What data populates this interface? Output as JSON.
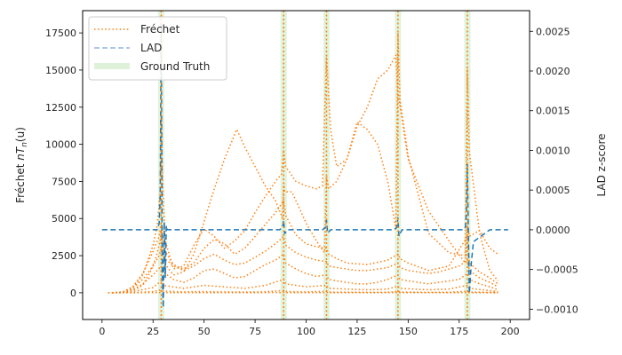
{
  "chart_data": {
    "type": "line",
    "x_range": [
      -9.5,
      209.5
    ],
    "x_ticks": [
      0,
      25,
      50,
      75,
      100,
      125,
      150,
      175,
      200
    ],
    "y_left": {
      "label": "Fréchet nTₙ(u)",
      "label_main": "Fréchet ",
      "label_math": "nT",
      "label_sub": "n",
      "label_tail": "(u)",
      "range": [
        -1800,
        19000
      ],
      "ticks": [
        0,
        2500,
        5000,
        7500,
        10000,
        12500,
        15000,
        17500
      ]
    },
    "y_right": {
      "label": "LAD z-score",
      "range": [
        -0.00113,
        0.00276
      ],
      "ticks": [
        -0.001,
        -0.0005,
        0.0,
        0.0005,
        0.001,
        0.0015,
        0.002,
        0.0025
      ],
      "tick_labels": [
        "−0.0010",
        "−0.0005",
        "0.0000",
        "0.0005",
        "0.0010",
        "0.0015",
        "0.0020",
        "0.0025"
      ]
    },
    "legend": {
      "placement": "upper-left",
      "entries": [
        {
          "label": "Fréchet",
          "style": "dotted",
          "color": "#ff7f0e"
        },
        {
          "label": "LAD",
          "style": "dashed",
          "color": "#aec7e8"
        },
        {
          "label": "Ground Truth",
          "style": "band",
          "color": "#c7e9c0"
        }
      ]
    },
    "ground_truth_x": [
      29,
      89,
      110,
      145,
      179
    ],
    "frechet_series": [
      {
        "x": [
          5,
          10,
          15,
          20,
          24,
          26.5,
          28.5,
          29,
          29.5,
          31,
          35,
          40,
          45,
          50,
          55,
          60,
          66,
          70,
          75,
          80,
          85,
          88.5,
          89,
          89.5,
          93,
          100,
          105,
          109,
          110,
          111,
          115,
          120,
          125,
          130,
          135,
          140,
          144,
          145,
          146,
          150,
          160,
          170,
          178,
          179,
          180,
          185,
          190,
          194
        ],
        "y": [
          0,
          20,
          150,
          500,
          1500,
          2400,
          3500,
          4200,
          3000,
          1900,
          1200,
          1400,
          2600,
          4800,
          7000,
          9000,
          11000,
          9800,
          8500,
          7200,
          6200,
          5000,
          7500,
          6800,
          6800,
          4700,
          3500,
          2700,
          7900,
          7000,
          7500,
          9000,
          11200,
          12500,
          14400,
          15000,
          16000,
          13500,
          12600,
          9000,
          5500,
          3500,
          2000,
          4500,
          3800,
          4200,
          3000,
          2600
        ]
      },
      {
        "x": [
          5,
          10,
          15,
          20,
          25,
          27,
          28.5,
          29,
          29.5,
          31,
          35,
          40,
          45,
          50,
          55,
          60,
          65,
          70,
          75,
          80,
          85,
          88,
          89,
          90,
          95,
          100,
          105,
          108,
          110,
          112,
          115,
          120,
          125,
          130,
          135,
          140,
          144,
          145,
          146,
          150,
          160,
          170,
          178,
          179,
          180,
          185,
          190,
          194
        ],
        "y": [
          0,
          30,
          300,
          1200,
          3200,
          4500,
          6800,
          12000,
          8000,
          3500,
          1600,
          1800,
          3200,
          4300,
          3800,
          3000,
          3500,
          4200,
          5400,
          6500,
          7500,
          8000,
          9600,
          8500,
          7500,
          7200,
          7000,
          7200,
          16000,
          11000,
          8500,
          9000,
          11500,
          11000,
          10000,
          7500,
          4300,
          17500,
          13000,
          9200,
          4000,
          2700,
          2500,
          15200,
          9500,
          4000,
          1500,
          800
        ]
      },
      {
        "x": [
          5,
          10,
          15,
          20,
          25,
          28,
          29,
          30,
          35,
          40,
          45,
          50,
          55,
          60,
          65,
          70,
          75,
          80,
          85,
          89,
          90,
          95,
          100,
          105,
          110,
          111,
          115,
          120,
          130,
          140,
          145,
          146,
          150,
          160,
          170,
          179,
          180,
          185,
          190,
          194
        ],
        "y": [
          0,
          50,
          400,
          1300,
          2800,
          3800,
          4700,
          3000,
          1900,
          1600,
          2000,
          3000,
          3600,
          3300,
          2600,
          3000,
          3800,
          4600,
          5400,
          6200,
          5200,
          3900,
          3300,
          3100,
          3000,
          2600,
          2300,
          2000,
          1900,
          2200,
          2600,
          2300,
          2000,
          1500,
          1800,
          3800,
          2000,
          1400,
          1000,
          600
        ]
      },
      {
        "x": [
          5,
          10,
          15,
          20,
          25,
          28,
          29,
          30,
          35,
          40,
          45,
          50,
          55,
          60,
          65,
          70,
          75,
          80,
          85,
          89,
          90,
          95,
          100,
          105,
          110,
          111,
          115,
          120,
          125,
          130,
          135,
          140,
          145,
          146,
          150,
          155,
          160,
          165,
          170,
          175,
          179,
          180,
          185,
          190,
          194
        ],
        "y": [
          0,
          60,
          300,
          900,
          1800,
          2500,
          3000,
          2400,
          1800,
          1500,
          1800,
          2300,
          2600,
          2200,
          1900,
          2000,
          2400,
          2800,
          3300,
          3800,
          3200,
          2700,
          2400,
          2200,
          2100,
          1800,
          1700,
          1600,
          1500,
          1500,
          1600,
          1700,
          2000,
          1700,
          1500,
          1400,
          1300,
          1400,
          1600,
          1800,
          2200,
          1500,
          1000,
          700,
          400
        ]
      },
      {
        "x": [
          5,
          10,
          15,
          20,
          25,
          29,
          30,
          35,
          40,
          45,
          50,
          55,
          60,
          65,
          70,
          75,
          80,
          85,
          89,
          90,
          95,
          100,
          105,
          110,
          111,
          115,
          120,
          125,
          130,
          135,
          140,
          145,
          146,
          150,
          155,
          160,
          165,
          170,
          175,
          179,
          180,
          185,
          190,
          194
        ],
        "y": [
          0,
          30,
          200,
          600,
          1200,
          1800,
          1400,
          900,
          700,
          1000,
          1500,
          1600,
          1300,
          1000,
          1100,
          1500,
          1900,
          2200,
          2600,
          2000,
          1600,
          1300,
          1100,
          1200,
          900,
          800,
          700,
          600,
          600,
          700,
          900,
          1200,
          900,
          800,
          700,
          600,
          700,
          800,
          900,
          1300,
          900,
          600,
          400,
          200
        ]
      },
      {
        "x": [
          5,
          15,
          25,
          29,
          30,
          40,
          50,
          60,
          70,
          80,
          89,
          90,
          100,
          110,
          111,
          120,
          130,
          140,
          145,
          146,
          160,
          170,
          179,
          180,
          190,
          194
        ],
        "y": [
          0,
          80,
          350,
          800,
          500,
          300,
          500,
          400,
          300,
          500,
          900,
          600,
          400,
          500,
          300,
          250,
          200,
          250,
          450,
          300,
          200,
          250,
          500,
          300,
          150,
          80
        ]
      },
      {
        "x": [
          3,
          15,
          25,
          29,
          30,
          40,
          50,
          60,
          70,
          80,
          89,
          90,
          100,
          110,
          111,
          120,
          130,
          140,
          145,
          146,
          160,
          170,
          179,
          180,
          190,
          194
        ],
        "y": [
          0,
          20,
          80,
          200,
          120,
          60,
          80,
          60,
          50,
          70,
          150,
          90,
          60,
          100,
          50,
          40,
          30,
          40,
          90,
          50,
          30,
          40,
          100,
          50,
          30,
          10
        ]
      },
      {
        "x": [
          3,
          20,
          28,
          29,
          30,
          50,
          88,
          89,
          90,
          109,
          110,
          111,
          144,
          145,
          146,
          178,
          179,
          180,
          194
        ],
        "y": [
          0,
          5,
          10,
          40,
          10,
          5,
          10,
          30,
          10,
          10,
          35,
          10,
          10,
          40,
          10,
          10,
          30,
          10,
          0
        ]
      }
    ],
    "lad_series": {
      "x": [
        0,
        10,
        20,
        27,
        28,
        28.5,
        29,
        29.5,
        30,
        30.5,
        31,
        31.5,
        32,
        40,
        60,
        80,
        87,
        88,
        88.5,
        89,
        89.5,
        90,
        91,
        100,
        108,
        109,
        109.5,
        110,
        110.5,
        111,
        112,
        120,
        130,
        140,
        143,
        144,
        144.5,
        145,
        145.5,
        146,
        147,
        160,
        170,
        177,
        178,
        178.5,
        179,
        179.5,
        180,
        180.5,
        181,
        182,
        190,
        199
      ],
      "y": [
        0.0,
        0.0,
        0.0,
        0.0,
        8e-05,
        0.0004,
        0.0026,
        -0.0005,
        -0.00098,
        0.0001,
        -0.0006,
        5e-05,
        0.0,
        0.0,
        0.0,
        0.0,
        0.0,
        2e-05,
        4e-05,
        0.00012,
        -5e-05,
        -3e-05,
        0.0,
        0.0,
        0.0,
        2e-05,
        3e-05,
        0.00012,
        -4e-05,
        -3e-05,
        0.0,
        0.0,
        0.0,
        0.0,
        0.0,
        2e-05,
        4e-05,
        0.00015,
        -8e-05,
        -5e-05,
        0.0,
        0.0,
        0.0,
        0.0,
        3e-05,
        0.0002,
        0.00082,
        -5e-05,
        -0.0008,
        -0.0006,
        -0.0004,
        -0.00015,
        0.0,
        0.0
      ]
    }
  }
}
